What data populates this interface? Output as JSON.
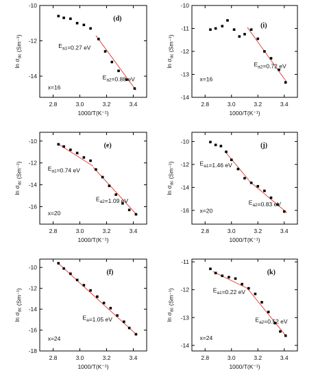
{
  "chart_data": [
    {
      "type": "scatter",
      "panel_label": "(d)",
      "xlabel": "1000/T(K⁻¹)",
      "ylabel": "ln σdc (Sm⁻¹)",
      "xlim": [
        2.7,
        3.5
      ],
      "ylim": [
        -15.2,
        -10.0
      ],
      "xticks": [
        "2.8",
        "3.0",
        "3.2",
        "3.4"
      ],
      "yticks": [
        "-10",
        "-12",
        "-14"
      ],
      "x": [
        2.84,
        2.88,
        2.93,
        2.98,
        3.03,
        3.08,
        3.14,
        3.19,
        3.24,
        3.29,
        3.35,
        3.41
      ],
      "y": [
        -10.6,
        -10.7,
        -10.75,
        -11.0,
        -11.1,
        -11.3,
        -11.9,
        -12.6,
        -13.2,
        -13.7,
        -14.2,
        -14.7
      ],
      "fit_lines": [
        [
          3.12,
          -11.7,
          3.42,
          -14.8
        ]
      ],
      "annotations": [
        {
          "text": "Ea1=0.27 eV",
          "x": 2.84,
          "y": -12.4
        },
        {
          "text": "Ea2=0.88 eV",
          "x": 3.17,
          "y": -14.2
        },
        {
          "text": "x=16",
          "x": 2.76,
          "y": -14.75
        }
      ]
    },
    {
      "type": "scatter",
      "panel_label": "(i)",
      "xlabel": "1000/T(K⁻¹)",
      "ylabel": "ln σdc (Sm⁻¹)",
      "xlim": [
        2.7,
        3.5
      ],
      "ylim": [
        -14.0,
        -10.0
      ],
      "xticks": [
        "2.8",
        "3.0",
        "3.2",
        "3.4"
      ],
      "yticks": [
        "-10",
        "-11",
        "-12",
        "-13",
        "-14"
      ],
      "x": [
        2.84,
        2.88,
        2.93,
        2.97,
        3.02,
        3.06,
        3.1,
        3.15,
        3.2,
        3.25,
        3.3,
        3.36,
        3.41
      ],
      "y": [
        -11.05,
        -11.0,
        -10.9,
        -10.65,
        -11.05,
        -11.35,
        -11.25,
        -11.05,
        -11.45,
        -12.0,
        -12.3,
        -12.8,
        -13.35
      ],
      "fit_lines": [
        [
          3.12,
          -10.95,
          3.42,
          -13.35
        ]
      ],
      "annotations": [
        {
          "text": "(i)",
          "x": 3.22,
          "y": -10.95
        },
        {
          "text": "Ea2=0.72 eV",
          "x": 3.17,
          "y": -12.65
        },
        {
          "text": "x=16",
          "x": 2.76,
          "y": -13.3
        }
      ]
    },
    {
      "type": "scatter",
      "panel_label": "(e)",
      "xlabel": "1000/T(K⁻¹)",
      "ylabel": "ln σdc (Sm⁻¹)",
      "xlim": [
        2.7,
        3.5
      ],
      "ylim": [
        -17.6,
        -9.2
      ],
      "xticks": [
        "2.8",
        "3.0",
        "3.2",
        "3.4"
      ],
      "yticks": [
        "-10",
        "-12",
        "-14",
        "-16"
      ],
      "x": [
        2.84,
        2.88,
        2.93,
        2.98,
        3.03,
        3.08,
        3.12,
        3.17,
        3.22,
        3.27,
        3.32,
        3.37,
        3.42
      ],
      "y": [
        -10.3,
        -10.5,
        -10.8,
        -11.1,
        -11.5,
        -11.8,
        -12.6,
        -13.3,
        -14.1,
        -14.9,
        -15.7,
        -16.3,
        -16.7
      ],
      "fit_lines": [
        [
          2.83,
          -10.2,
          3.1,
          -12.3
        ],
        [
          3.1,
          -12.4,
          3.43,
          -16.8
        ]
      ],
      "annotations": [
        {
          "text": "Ea1=0.74 eV",
          "x": 2.76,
          "y": -12.7
        },
        {
          "text": "Ea2=1.09 eV",
          "x": 3.12,
          "y": -15.5
        },
        {
          "text": "x=20",
          "x": 2.76,
          "y": -16.8
        }
      ]
    },
    {
      "type": "scatter",
      "panel_label": "(j)",
      "xlabel": "1000/T(K⁻¹)",
      "ylabel": "ln σdc (Sm⁻¹)",
      "xlim": [
        2.7,
        3.5
      ],
      "ylim": [
        -17.2,
        -9.2
      ],
      "xticks": [
        "2.8",
        "3.0",
        "3.2",
        "3.4"
      ],
      "yticks": [
        "-10",
        "-12",
        "-14",
        "-16"
      ],
      "x": [
        2.84,
        2.88,
        2.92,
        2.96,
        3.0,
        3.05,
        3.1,
        3.15,
        3.2,
        3.25,
        3.3,
        3.35,
        3.4
      ],
      "y": [
        -10.05,
        -10.3,
        -10.4,
        -10.9,
        -11.6,
        -12.4,
        -13.2,
        -13.6,
        -13.9,
        -14.3,
        -14.9,
        -15.5,
        -16.1
      ],
      "fit_lines": [
        [
          2.95,
          -10.85,
          3.13,
          -13.35
        ],
        [
          3.13,
          -13.4,
          3.42,
          -16.2
        ]
      ],
      "annotations": [
        {
          "text": "Ea1=1.46 eV",
          "x": 2.76,
          "y": -12.1
        },
        {
          "text": "Ea2=0.83 eV",
          "x": 3.13,
          "y": -15.5
        },
        {
          "text": "x=20",
          "x": 2.76,
          "y": -16.2
        }
      ]
    },
    {
      "type": "scatter",
      "panel_label": "(f)",
      "xlabel": "1000/T(K⁻¹)",
      "ylabel": "ln σdc (Sm⁻¹)",
      "xlim": [
        2.7,
        3.5
      ],
      "ylim": [
        -18.0,
        -9.2
      ],
      "xticks": [
        "2.8",
        "3.0",
        "3.2",
        "3.4"
      ],
      "yticks": [
        "-10",
        "-12",
        "-14",
        "-16",
        "-18"
      ],
      "x": [
        2.84,
        2.88,
        2.93,
        2.98,
        3.03,
        3.08,
        3.13,
        3.18,
        3.23,
        3.28,
        3.33,
        3.37,
        3.42
      ],
      "y": [
        -9.6,
        -10.1,
        -10.6,
        -11.2,
        -11.7,
        -12.2,
        -12.8,
        -13.4,
        -13.9,
        -14.6,
        -15.2,
        -15.8,
        -16.4
      ],
      "fit_lines": [
        [
          2.83,
          -9.5,
          3.43,
          -16.5
        ]
      ],
      "annotations": [
        {
          "text": "Ea=1.05 eV",
          "x": 3.02,
          "y": -15.0
        },
        {
          "text": "x=24",
          "x": 2.76,
          "y": -17.0
        }
      ]
    },
    {
      "type": "scatter",
      "panel_label": "(k)",
      "xlabel": "1000/T(K⁻¹)",
      "ylabel": "ln σdc (Sm⁻¹)",
      "xlim": [
        2.7,
        3.5
      ],
      "ylim": [
        -14.2,
        -10.9
      ],
      "xticks": [
        "2.8",
        "3.0",
        "3.2",
        "3.4"
      ],
      "yticks": [
        "-11",
        "-12",
        "-13",
        "-14"
      ],
      "x": [
        2.84,
        2.88,
        2.93,
        2.98,
        3.03,
        3.08,
        3.13,
        3.18,
        3.23,
        3.28,
        3.33,
        3.37,
        3.41
      ],
      "y": [
        -11.25,
        -11.4,
        -11.5,
        -11.55,
        -11.6,
        -11.8,
        -11.95,
        -12.15,
        -12.45,
        -12.8,
        -13.2,
        -13.5,
        -13.65
      ],
      "fit_lines": [
        [
          2.86,
          -11.35,
          3.12,
          -11.95
        ],
        [
          3.12,
          -11.95,
          3.42,
          -13.7
        ]
      ],
      "annotations": [
        {
          "text": "Ea1=0.22 eV",
          "x": 2.86,
          "y": -12.1
        },
        {
          "text": "Ea2=0.52 eV",
          "x": 3.18,
          "y": -13.15
        },
        {
          "text": "x=24",
          "x": 2.76,
          "y": -13.8
        }
      ]
    }
  ]
}
